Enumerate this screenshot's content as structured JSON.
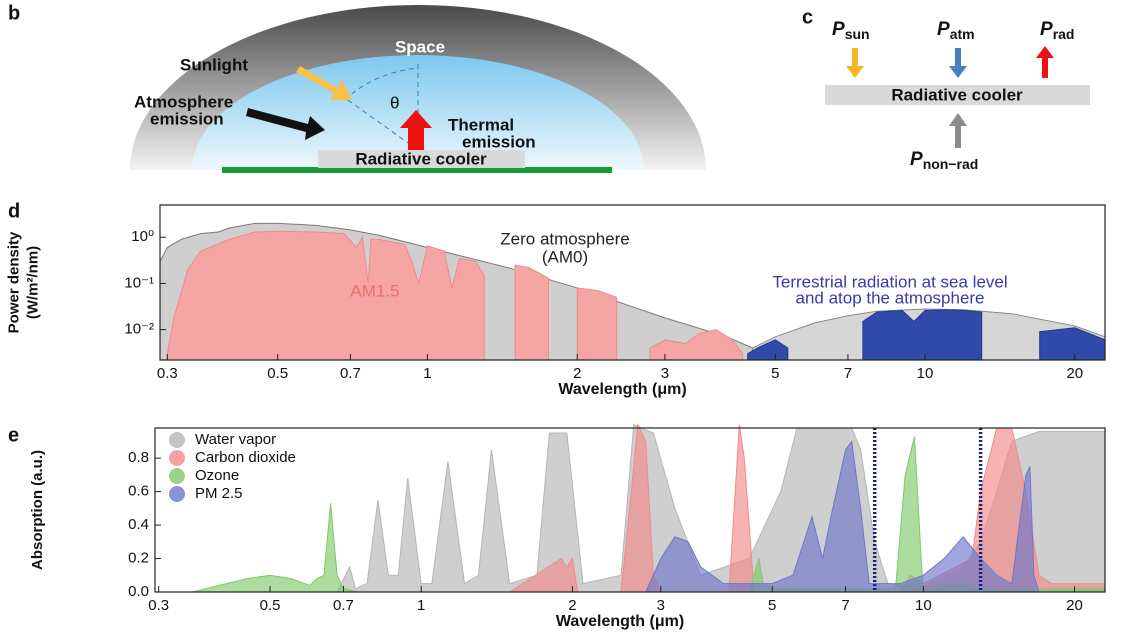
{
  "diagram_b": {
    "label": "b",
    "space": "Space",
    "sunlight": "Sunlight",
    "atmosphere_emission": [
      "Atmosphere",
      "emission"
    ],
    "angle": "θ",
    "thermal_emission": [
      "Thermal",
      "emission"
    ],
    "cooler": "Radiative cooler"
  },
  "diagram_c": {
    "label": "c",
    "fluxes": [
      {
        "symbol": "P",
        "subscript": "sun"
      },
      {
        "symbol": "P",
        "subscript": "atm"
      },
      {
        "symbol": "P",
        "subscript": "rad"
      },
      {
        "symbol": "P",
        "subscript": "non−rad"
      }
    ],
    "cooler": "Radiative cooler"
  },
  "chart_data": [
    {
      "type": "area",
      "panel_label": "d",
      "xlabel": "Wavelength (μm)",
      "ylabel": [
        "Power density",
        "(W/m²/nm)"
      ],
      "xscale": "log",
      "yscale": "log",
      "xlim": [
        0.29,
        23
      ],
      "ylim": [
        0.0022,
        5
      ],
      "xticks": [
        0.3,
        0.5,
        0.7,
        1,
        2,
        3,
        5,
        7,
        10,
        20
      ],
      "yticks": [
        {
          "value": 1,
          "label": "10⁰"
        },
        {
          "value": 0.1,
          "label": "10⁻¹"
        },
        {
          "value": 0.01,
          "label": "10⁻²"
        }
      ],
      "annotations": [
        {
          "lines": [
            "Zero atmosphere",
            "(AM0)"
          ],
          "color": "#222222"
        },
        {
          "lines": [
            "AM1.5"
          ],
          "color": "#e86d6d"
        },
        {
          "lines": [
            "Terrestrial radiation at sea level",
            "and atop the atmosphere"
          ],
          "color": "#3a3aa8"
        }
      ],
      "series": [
        {
          "color": "#cfcfcf",
          "stroke": "#7a7a7a",
          "x": [
            0.29,
            0.3,
            0.32,
            0.35,
            0.38,
            0.4,
            0.45,
            0.5,
            0.55,
            0.6,
            0.7,
            0.8,
            1,
            1.5,
            2,
            3,
            4,
            4.5
          ],
          "values": [
            0.3,
            0.6,
            0.9,
            1.2,
            1.3,
            1.6,
            2.0,
            2.0,
            1.9,
            1.8,
            1.45,
            1.1,
            0.6,
            0.2,
            0.08,
            0.018,
            0.007,
            0.004
          ]
        },
        {
          "color": "#d6d6d6",
          "stroke": "#8a8a8a",
          "x": [
            4.5,
            5,
            6,
            7,
            8,
            10,
            12,
            15,
            20,
            23
          ],
          "values": [
            0.004,
            0.007,
            0.014,
            0.02,
            0.025,
            0.028,
            0.027,
            0.022,
            0.012,
            0.007
          ]
        },
        {
          "color": "#f6a5a5",
          "stroke": "#ef8a8a",
          "x": [
            0.3,
            0.31,
            0.33,
            0.35,
            0.4,
            0.45,
            0.5,
            0.6,
            0.68,
            0.72,
            0.74,
            0.76,
            0.77,
            0.8,
            0.9,
            0.93,
            0.96,
            1.0,
            1.08,
            1.12,
            1.16,
            1.25,
            1.3,
            1.35,
            1.45,
            1.5,
            1.6,
            1.75,
            1.8,
            1.95,
            2.0,
            2.2,
            2.4,
            2.5,
            2.8,
            3.0,
            3.3,
            3.5,
            3.8,
            4.1,
            4.3
          ],
          "values": [
            0.003,
            0.02,
            0.2,
            0.5,
            0.9,
            1.3,
            1.35,
            1.3,
            1.2,
            0.6,
            1.0,
            0.1,
            0.9,
            0.9,
            0.7,
            0.3,
            0.1,
            0.65,
            0.5,
            0.08,
            0.35,
            0.3,
            0.15,
            null,
            null,
            0.25,
            0.22,
            0.13,
            null,
            null,
            0.08,
            0.07,
            0.05,
            null,
            0.004,
            0.006,
            0.005,
            0.008,
            0.01,
            0.006,
            0.003
          ]
        },
        {
          "color": "#2f4aa8",
          "stroke": "#24398a",
          "x": [
            4.4,
            4.6,
            5,
            5.3,
            5.5,
            7.3,
            7.5,
            8,
            9,
            9.5,
            10,
            11,
            12,
            13,
            13.5,
            16,
            17,
            20,
            23
          ],
          "values": [
            0.003,
            0.004,
            0.006,
            0.004,
            null,
            null,
            0.015,
            0.024,
            0.026,
            0.015,
            0.026,
            0.027,
            0.026,
            0.024,
            null,
            null,
            0.009,
            0.011,
            0.006
          ]
        }
      ]
    },
    {
      "type": "area",
      "panel_label": "e",
      "xlabel": "Wavelength (μm)",
      "ylabel": [
        "Absorption (a.u.)"
      ],
      "xscale": "log",
      "yscale": "linear",
      "xlim": [
        0.295,
        23
      ],
      "ylim": [
        0,
        0.98
      ],
      "legend": "upper left",
      "xticks": [
        0.3,
        0.5,
        0.7,
        1,
        2,
        3,
        5,
        7,
        10,
        20
      ],
      "yticks": [
        {
          "value": 0,
          "label": "0.0"
        },
        0.2,
        0.4,
        0.6,
        0.8
      ],
      "window_lines": [
        8,
        13
      ],
      "window_color": "#1a237e",
      "series": [
        {
          "name": "Water vapor",
          "color": "#b5b5b5",
          "x": [
            0.68,
            0.72,
            0.74,
            0.78,
            0.82,
            0.86,
            0.9,
            0.94,
            1.0,
            1.05,
            1.13,
            1.22,
            1.3,
            1.38,
            1.5,
            1.7,
            1.8,
            1.95,
            2.1,
            2.5,
            2.65,
            2.9,
            3.2,
            3.6,
            4.5,
            5.2,
            5.6,
            7.2,
            7.5,
            8.0,
            8.5,
            10,
            12,
            13,
            14,
            15,
            17,
            23
          ],
          "values": [
            0,
            0.15,
            0.02,
            0.05,
            0.55,
            0.1,
            0.1,
            0.68,
            0.05,
            0.05,
            0.78,
            0.05,
            0.1,
            0.85,
            0.05,
            0.1,
            0.95,
            0.95,
            0.05,
            0.1,
            1.0,
            0.95,
            0.5,
            0.1,
            0.2,
            0.6,
            0.98,
            0.98,
            0.85,
            0.3,
            0.05,
            0.03,
            0.15,
            0.3,
            0.6,
            0.9,
            0.96,
            0.96
          ]
        },
        {
          "name": "Carbon dioxide",
          "color": "#f28b8b",
          "x": [
            1.5,
            1.9,
            1.95,
            2.0,
            2.05,
            2.5,
            2.6,
            2.7,
            2.8,
            2.9,
            3.0,
            4.1,
            4.2,
            4.3,
            4.4,
            4.6,
            9,
            9.4,
            10,
            12.5,
            13,
            14,
            15,
            16,
            17,
            18,
            23
          ],
          "values": [
            0,
            0.2,
            0.15,
            0.2,
            0,
            0,
            0.5,
            1.0,
            0.9,
            0.1,
            0,
            0,
            0.5,
            1.0,
            0.8,
            0,
            0,
            0.1,
            0.05,
            0.2,
            0.6,
            0.98,
            0.98,
            0.6,
            0.1,
            0.05,
            0.05
          ]
        },
        {
          "name": "Ozone",
          "color": "#7fc96a",
          "x": [
            0.35,
            0.45,
            0.5,
            0.55,
            0.6,
            0.62,
            0.64,
            0.66,
            0.68,
            0.7,
            0.75,
            4.5,
            4.7,
            4.8,
            5,
            8.8,
            9.2,
            9.6,
            9.9,
            10,
            12,
            13,
            23
          ],
          "values": [
            0,
            0.08,
            0.1,
            0.08,
            0.04,
            0.08,
            0.1,
            0.53,
            0.1,
            0.02,
            0,
            0,
            0.2,
            0.05,
            0.02,
            0.02,
            0.7,
            0.93,
            0.2,
            0.02,
            0.05,
            0.02,
            0.02
          ]
        },
        {
          "name": "PM 2.5",
          "color": "#6f78c9",
          "x": [
            2.8,
            3.0,
            3.2,
            3.4,
            3.6,
            4,
            5,
            5.5,
            6,
            6.3,
            6.6,
            7,
            7.2,
            7.5,
            7.8,
            8,
            9,
            10,
            11,
            12,
            13,
            14,
            15,
            16,
            16.3,
            16.6,
            17,
            23
          ],
          "values": [
            0,
            0.2,
            0.33,
            0.3,
            0.15,
            0.05,
            0.05,
            0.1,
            0.45,
            0.2,
            0.5,
            0.85,
            0.9,
            0.5,
            0.05,
            0.05,
            0.05,
            0.1,
            0.2,
            0.33,
            0.2,
            0.1,
            0.05,
            0.7,
            0.75,
            0.1,
            0,
            0
          ]
        }
      ]
    }
  ]
}
